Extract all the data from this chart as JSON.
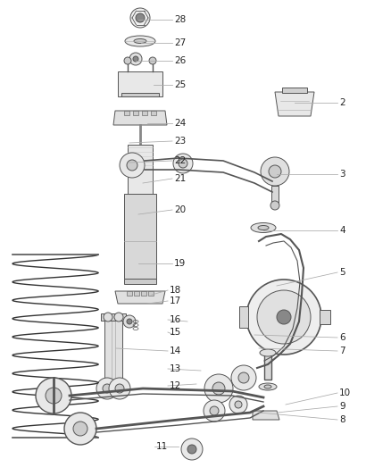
{
  "bg_color": "#ffffff",
  "lc": "#555555",
  "lc2": "#333333",
  "label_color": "#222222",
  "fs": 7.5,
  "fig_w": 4.38,
  "fig_h": 5.33,
  "dpi": 100,
  "labels": [
    [
      "28",
      195,
      22
    ],
    [
      "27",
      195,
      48
    ],
    [
      "26",
      195,
      68
    ],
    [
      "25",
      195,
      95
    ],
    [
      "24",
      195,
      138
    ],
    [
      "23",
      195,
      158
    ],
    [
      "22",
      195,
      180
    ],
    [
      "21",
      195,
      200
    ],
    [
      "20",
      195,
      235
    ],
    [
      "19",
      195,
      295
    ],
    [
      "18",
      190,
      325
    ],
    [
      "17",
      190,
      337
    ],
    [
      "16",
      190,
      358
    ],
    [
      "15",
      190,
      372
    ],
    [
      "14",
      190,
      393
    ],
    [
      "13",
      190,
      413
    ],
    [
      "12",
      190,
      432
    ],
    [
      "11",
      175,
      500
    ],
    [
      "10",
      380,
      440
    ],
    [
      "9",
      380,
      455
    ],
    [
      "8",
      380,
      470
    ],
    [
      "7",
      380,
      393
    ],
    [
      "6",
      380,
      378
    ],
    [
      "5",
      380,
      305
    ],
    [
      "4",
      380,
      258
    ],
    [
      "3",
      380,
      195
    ],
    [
      "2",
      380,
      115
    ]
  ],
  "leader_lines": [
    [
      195,
      22,
      155,
      22
    ],
    [
      195,
      48,
      158,
      48
    ],
    [
      195,
      68,
      152,
      68
    ],
    [
      195,
      95,
      172,
      95
    ],
    [
      195,
      138,
      165,
      138
    ],
    [
      195,
      158,
      145,
      160
    ],
    [
      195,
      180,
      145,
      182
    ],
    [
      195,
      200,
      160,
      205
    ],
    [
      195,
      235,
      155,
      240
    ],
    [
      195,
      295,
      155,
      295
    ],
    [
      190,
      325,
      170,
      330
    ],
    [
      190,
      337,
      165,
      340
    ],
    [
      190,
      358,
      210,
      360
    ],
    [
      190,
      372,
      195,
      375
    ],
    [
      190,
      393,
      130,
      390
    ],
    [
      190,
      413,
      225,
      415
    ],
    [
      190,
      432,
      220,
      430
    ],
    [
      175,
      500,
      200,
      500
    ],
    [
      380,
      440,
      320,
      453
    ],
    [
      380,
      455,
      310,
      462
    ],
    [
      380,
      470,
      290,
      462
    ],
    [
      380,
      393,
      290,
      390
    ],
    [
      380,
      378,
      285,
      375
    ],
    [
      380,
      305,
      310,
      320
    ],
    [
      380,
      258,
      295,
      258
    ],
    [
      380,
      195,
      310,
      195
    ],
    [
      380,
      115,
      330,
      115
    ]
  ]
}
